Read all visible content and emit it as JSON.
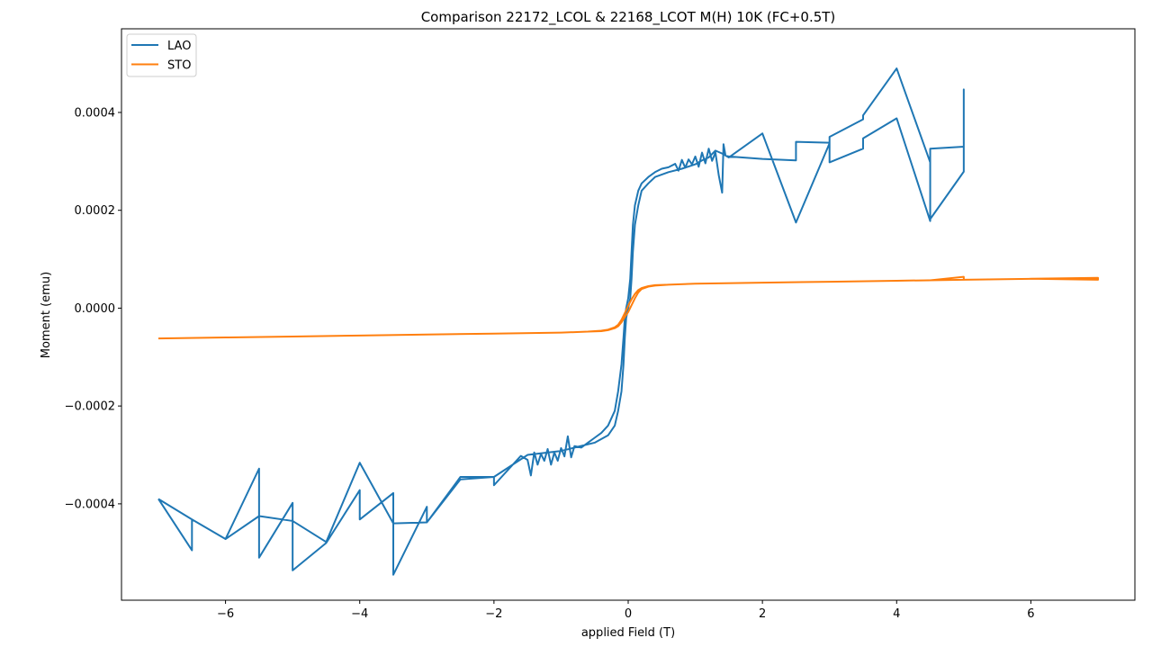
{
  "chart_data": {
    "type": "line",
    "title": "Comparison 22172_LCOL & 22168_LCOT M(H) 10K (FC+0.5T)",
    "xlabel": "applied Field (T)",
    "ylabel": "Moment (emu)",
    "xlim": [
      -7.55,
      7.55
    ],
    "ylim": [
      -0.000597,
      0.000571
    ],
    "x_ticks": [
      -6,
      -4,
      -2,
      0,
      2,
      4,
      6
    ],
    "x_tick_labels": [
      "−6",
      "−4",
      "−2",
      "0",
      "2",
      "4",
      "6"
    ],
    "y_ticks": [
      -0.0004,
      -0.0002,
      0.0,
      0.0002,
      0.0004
    ],
    "y_tick_labels": [
      "−0.0004",
      "−0.0002",
      "0.0000",
      "0.0002",
      "0.0004"
    ],
    "grid": false,
    "legend_position": "upper left",
    "series": [
      {
        "name": "LAO",
        "color": "#1f77b4",
        "x": [
          -7.0,
          -6.5,
          -6.5,
          -6.0,
          -5.5,
          -5.5,
          -5.0,
          -5.0,
          -4.5,
          -4.0,
          -4.0,
          -3.5,
          -3.5,
          -3.0,
          -3.0,
          -2.5,
          -2.0,
          -2.0,
          -1.6,
          -1.5,
          -1.45,
          -1.4,
          -1.35,
          -1.3,
          -1.25,
          -1.2,
          -1.15,
          -1.1,
          -1.05,
          -1.0,
          -0.95,
          -0.9,
          -0.85,
          -0.8,
          -0.7,
          -0.6,
          -0.5,
          -0.4,
          -0.3,
          -0.2,
          -0.15,
          -0.1,
          -0.07,
          -0.05,
          -0.03,
          0.0,
          0.03,
          0.05,
          0.07,
          0.1,
          0.15,
          0.2,
          0.3,
          0.4,
          0.5,
          0.6,
          0.7,
          0.75,
          0.8,
          0.85,
          0.9,
          0.95,
          1.0,
          1.05,
          1.1,
          1.15,
          1.2,
          1.25,
          1.3,
          1.35,
          1.4,
          1.42,
          1.45,
          1.5,
          2.0,
          2.5,
          2.5,
          3.0,
          3.0,
          3.5,
          3.5,
          4.0,
          4.5,
          4.5,
          5.0,
          5.0,
          5.0,
          4.5,
          4.5,
          4.0,
          3.5,
          3.5,
          3.0,
          3.0,
          2.5,
          2.0,
          1.5,
          1.4,
          1.3,
          1.2,
          1.1,
          1.0,
          0.8,
          0.6,
          0.4,
          0.3,
          0.2,
          0.15,
          0.1,
          0.07,
          0.05,
          0.03,
          0.0,
          -0.03,
          -0.05,
          -0.07,
          -0.1,
          -0.15,
          -0.2,
          -0.3,
          -0.5,
          -0.8,
          -1.0,
          -1.5,
          -2.0,
          -2.5,
          -3.0,
          -3.5,
          -4.0,
          -4.5,
          -5.0,
          -5.5,
          -6.0,
          -6.5,
          -7.0
        ],
        "y": [
          -0.00039,
          -0.000495,
          -0.000432,
          -0.000472,
          -0.000328,
          -0.00051,
          -0.000398,
          -0.000536,
          -0.00048,
          -0.000372,
          -0.000432,
          -0.000378,
          -0.000545,
          -0.000406,
          -0.000438,
          -0.000345,
          -0.000345,
          -0.000362,
          -0.000302,
          -0.00031,
          -0.000342,
          -0.000295,
          -0.00032,
          -0.000298,
          -0.000312,
          -0.000288,
          -0.00032,
          -0.000295,
          -0.000312,
          -0.000286,
          -0.000303,
          -0.000262,
          -0.000305,
          -0.000282,
          -0.000285,
          -0.000275,
          -0.000265,
          -0.000255,
          -0.00024,
          -0.00021,
          -0.00017,
          -0.000115,
          -6e-05,
          -2e-05,
          0.0,
          2e-05,
          6e-05,
          0.000115,
          0.00017,
          0.00021,
          0.00024,
          0.000255,
          0.000268,
          0.000278,
          0.000285,
          0.000288,
          0.000295,
          0.000281,
          0.000303,
          0.000287,
          0.000304,
          0.000294,
          0.00031,
          0.000289,
          0.000318,
          0.000296,
          0.000326,
          0.000301,
          0.000318,
          0.000271,
          0.000236,
          0.000335,
          0.000312,
          0.00031,
          0.000305,
          0.000302,
          0.00034,
          0.000338,
          0.000298,
          0.000326,
          0.000347,
          0.000388,
          0.000178,
          0.000326,
          0.00033,
          0.000447,
          0.000279,
          0.000182,
          0.000298,
          0.00049,
          0.000394,
          0.000386,
          0.00035,
          0.000337,
          0.000175,
          0.000357,
          0.000308,
          0.000316,
          0.000322,
          0.000308,
          0.000302,
          0.000294,
          0.000285,
          0.000278,
          0.000268,
          0.000255,
          0.00024,
          0.00021,
          0.00017,
          0.000115,
          6e-05,
          2e-05,
          0.0,
          -2e-05,
          -6e-05,
          -0.000115,
          -0.00017,
          -0.00021,
          -0.00024,
          -0.00026,
          -0.000275,
          -0.000285,
          -0.000292,
          -0.0003,
          -0.000345,
          -0.00035,
          -0.000438,
          -0.00044,
          -0.000316,
          -0.000478,
          -0.000435,
          -0.000425,
          -0.000472,
          -0.000432,
          -0.00039
        ]
      },
      {
        "name": "STO",
        "color": "#ff7f0e",
        "x": [
          -7.0,
          -6.0,
          -5.0,
          -4.0,
          -3.0,
          -2.0,
          -1.0,
          -0.6,
          -0.4,
          -0.3,
          -0.2,
          -0.15,
          -0.1,
          -0.05,
          0.0,
          0.05,
          0.1,
          0.15,
          0.2,
          0.3,
          0.4,
          0.6,
          1.0,
          2.0,
          3.0,
          4.0,
          4.5,
          5.0,
          5.0,
          6.0,
          7.0,
          7.0,
          6.0,
          5.0,
          4.0,
          3.0,
          2.0,
          1.0,
          0.6,
          0.4,
          0.3,
          0.2,
          0.15,
          0.1,
          0.05,
          0.0,
          -0.05,
          -0.1,
          -0.15,
          -0.2,
          -0.3,
          -0.4,
          -0.6,
          -1.0,
          -2.0,
          -3.0,
          -4.0,
          -5.0,
          -6.0,
          -7.0
        ],
        "y": [
          -6.2e-05,
          -6e-05,
          -5.8e-05,
          -5.6e-05,
          -5.4e-05,
          -5.2e-05,
          -5e-05,
          -4.8e-05,
          -4.6e-05,
          -4.4e-05,
          -3.9e-05,
          -3.4e-05,
          -2.4e-05,
          -1e-05,
          5e-06,
          1.8e-05,
          2.9e-05,
          3.7e-05,
          4.1e-05,
          4.5e-05,
          4.7e-05,
          4.8e-05,
          5e-05,
          5.2e-05,
          5.4e-05,
          5.6e-05,
          5.7e-05,
          6.4e-05,
          5.8e-05,
          6e-05,
          6.2e-05,
          5.8e-05,
          6e-05,
          5.8e-05,
          5.6e-05,
          5.4e-05,
          5.2e-05,
          5e-05,
          4.8e-05,
          4.6e-05,
          4.4e-05,
          3.9e-05,
          3.2e-05,
          2e-05,
          6e-06,
          -8e-06,
          -1.8e-05,
          -2.9e-05,
          -3.7e-05,
          -4.1e-05,
          -4.5e-05,
          -4.7e-05,
          -4.8e-05,
          -5e-05,
          -5.2e-05,
          -5.4e-05,
          -5.6e-05,
          -5.8e-05,
          -6e-05,
          -6.2e-05
        ]
      }
    ]
  }
}
